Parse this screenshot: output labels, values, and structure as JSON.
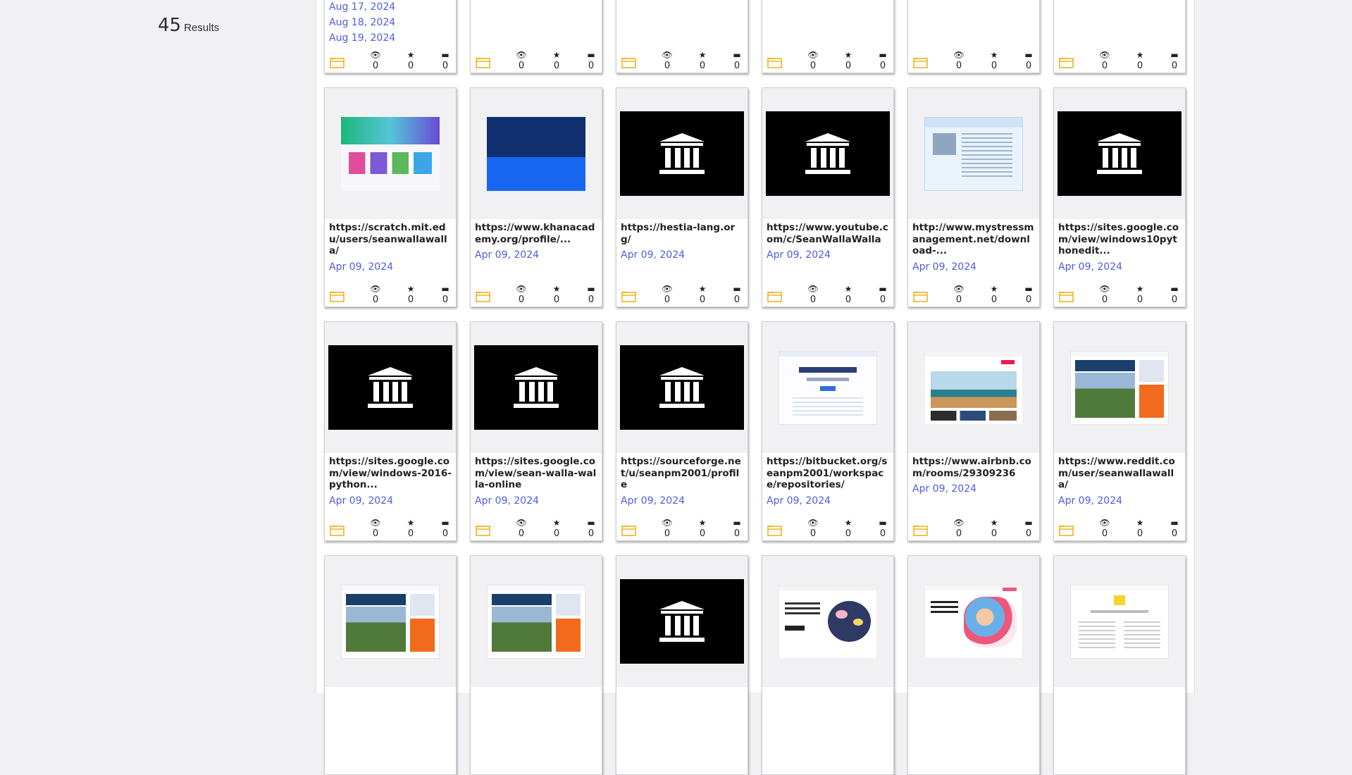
{
  "results": {
    "count": "45",
    "label": "Results"
  },
  "icons": {
    "folder": "folder-icon",
    "views": "eye-icon",
    "favorites": "star-icon",
    "comments": "comment-icon"
  },
  "colors": {
    "link": "#4c5ce5",
    "folder": "#f2b21f",
    "archive_tile": "#000000"
  },
  "row0": [
    {
      "dates": [
        "Aug 17, 2024",
        "Aug 18, 2024",
        "Aug 19, 2024"
      ],
      "views": "0",
      "favorites": "0",
      "comments": "0"
    },
    {
      "views": "0",
      "favorites": "0",
      "comments": "0"
    },
    {
      "views": "0",
      "favorites": "0",
      "comments": "0"
    },
    {
      "views": "0",
      "favorites": "0",
      "comments": "0"
    },
    {
      "views": "0",
      "favorites": "0",
      "comments": "0"
    },
    {
      "views": "0",
      "favorites": "0",
      "comments": "0"
    }
  ],
  "row1": [
    {
      "thumb": "screenshot-scratch",
      "url": "https://scratch.mit.edu/users/seanwallawalla/",
      "date": "Apr 09, 2024",
      "views": "0",
      "favorites": "0",
      "comments": "0"
    },
    {
      "thumb": "screenshot-khanacademy",
      "url": "https://www.khanacademy.org/profile/...",
      "date": "Apr 09, 2024",
      "views": "0",
      "favorites": "0",
      "comments": "0"
    },
    {
      "thumb": "archive-logo",
      "url": "https://hestia-lang.org/",
      "date": "Apr 09, 2024",
      "views": "0",
      "favorites": "0",
      "comments": "0"
    },
    {
      "thumb": "archive-logo",
      "url": "https://www.youtube.com/c/SeanWallaWalla",
      "date": "Apr 09, 2024",
      "views": "0",
      "favorites": "0",
      "comments": "0"
    },
    {
      "thumb": "screenshot-mystress",
      "url": "http://www.mystressmanagement.net/download-...",
      "date": "Apr 09, 2024",
      "views": "0",
      "favorites": "0",
      "comments": "0"
    },
    {
      "thumb": "archive-logo",
      "url": "https://sites.google.com/view/windows10pythonedit...",
      "date": "Apr 09, 2024",
      "views": "0",
      "favorites": "0",
      "comments": "0"
    }
  ],
  "row2": [
    {
      "thumb": "archive-logo",
      "url": "https://sites.google.com/view/windows-2016-python...",
      "date": "Apr 09, 2024",
      "views": "0",
      "favorites": "0",
      "comments": "0"
    },
    {
      "thumb": "archive-logo",
      "url": "https://sites.google.com/view/sean-walla-walla-online",
      "date": "Apr 09, 2024",
      "views": "0",
      "favorites": "0",
      "comments": "0"
    },
    {
      "thumb": "archive-logo",
      "url": "https://sourceforge.net/u/seanpm2001/profile",
      "date": "Apr 09, 2024",
      "views": "0",
      "favorites": "0",
      "comments": "0"
    },
    {
      "thumb": "screenshot-bitbucket",
      "url": "https://bitbucket.org/seanpm2001/workspace/repositories/",
      "date": "Apr 09, 2024",
      "views": "0",
      "favorites": "0",
      "comments": "0"
    },
    {
      "thumb": "screenshot-airbnb",
      "url": "https://www.airbnb.com/rooms/29309236",
      "date": "Apr 09, 2024",
      "views": "0",
      "favorites": "0",
      "comments": "0"
    },
    {
      "thumb": "screenshot-reddit",
      "url": "https://www.reddit.com/user/seanwallawalla/",
      "date": "Apr 09, 2024",
      "views": "0",
      "favorites": "0",
      "comments": "0"
    }
  ],
  "row3": [
    {
      "thumb": "screenshot-reddit"
    },
    {
      "thumb": "screenshot-reddit"
    },
    {
      "thumb": "archive-logo"
    },
    {
      "thumb": "screenshot-community"
    },
    {
      "thumb": "screenshot-fund-passions"
    },
    {
      "thumb": "screenshot-document"
    }
  ]
}
